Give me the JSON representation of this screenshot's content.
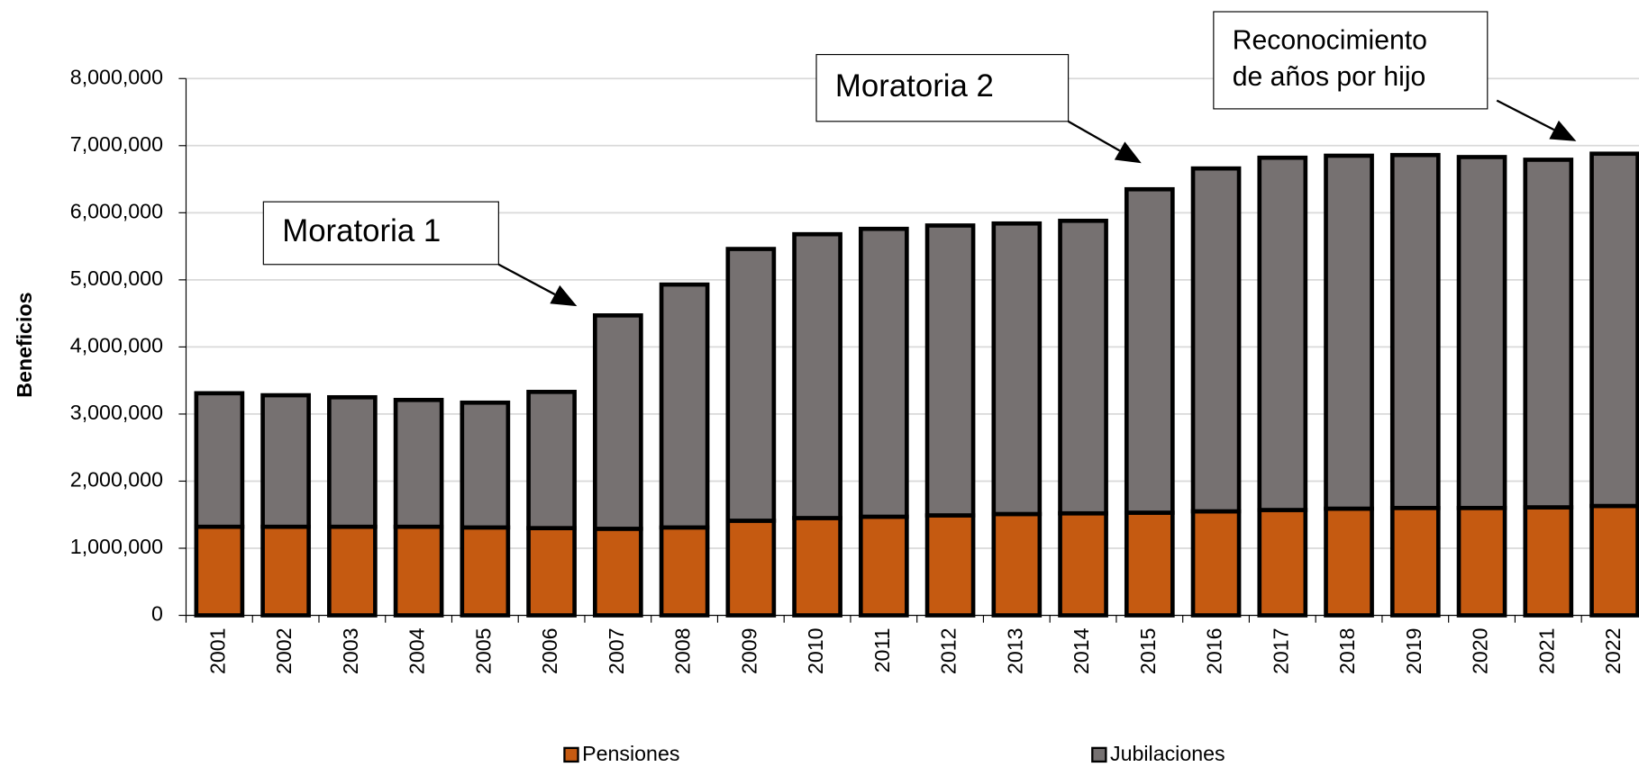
{
  "chart_data": {
    "type": "stacked_bar",
    "y_label": "Beneficios",
    "categories": [
      "2001",
      "2002",
      "2003",
      "2004",
      "2005",
      "2006",
      "2007",
      "2008",
      "2009",
      "2010",
      "2011",
      "2012",
      "2013",
      "2014",
      "2015",
      "2016",
      "2017",
      "2018",
      "2019",
      "2020",
      "2021",
      "2022"
    ],
    "series": [
      {
        "name": "Pensiones",
        "color": "#c55a11",
        "values": [
          1320000,
          1320000,
          1320000,
          1320000,
          1310000,
          1300000,
          1290000,
          1310000,
          1410000,
          1450000,
          1470000,
          1490000,
          1510000,
          1520000,
          1530000,
          1550000,
          1570000,
          1590000,
          1600000,
          1600000,
          1610000,
          1630000
        ]
      },
      {
        "name": "Jubilaciones",
        "color": "#767171",
        "values": [
          1990000,
          1960000,
          1930000,
          1890000,
          1860000,
          2030000,
          3180000,
          3620000,
          4050000,
          4230000,
          4290000,
          4320000,
          4330000,
          4360000,
          4820000,
          5110000,
          5250000,
          5260000,
          5260000,
          5230000,
          5180000,
          5250000
        ]
      }
    ],
    "ylim": [
      0,
      8000000
    ],
    "yticks": [
      0,
      {
        "value": 1000000,
        "label": "1,000,000"
      },
      {
        "value": 2000000,
        "label": "2,000,000"
      },
      {
        "value": 3000000,
        "label": "3,000,000"
      },
      {
        "value": 4000000,
        "label": "4,000,000"
      },
      {
        "value": 5000000,
        "label": "5,000,000"
      },
      {
        "value": 6000000,
        "label": "6,000,000"
      },
      {
        "value": 7000000,
        "label": "7,000,000"
      },
      {
        "value": 8000000,
        "label": "8,000,000"
      }
    ],
    "grid": true,
    "legend": "bottom",
    "annotations": [
      {
        "lines": [
          "Moratoria 1"
        ]
      },
      {
        "lines": [
          "Moratoria 2"
        ]
      },
      {
        "lines": [
          "Reconocimiento",
          "de años por hijo"
        ]
      }
    ]
  }
}
